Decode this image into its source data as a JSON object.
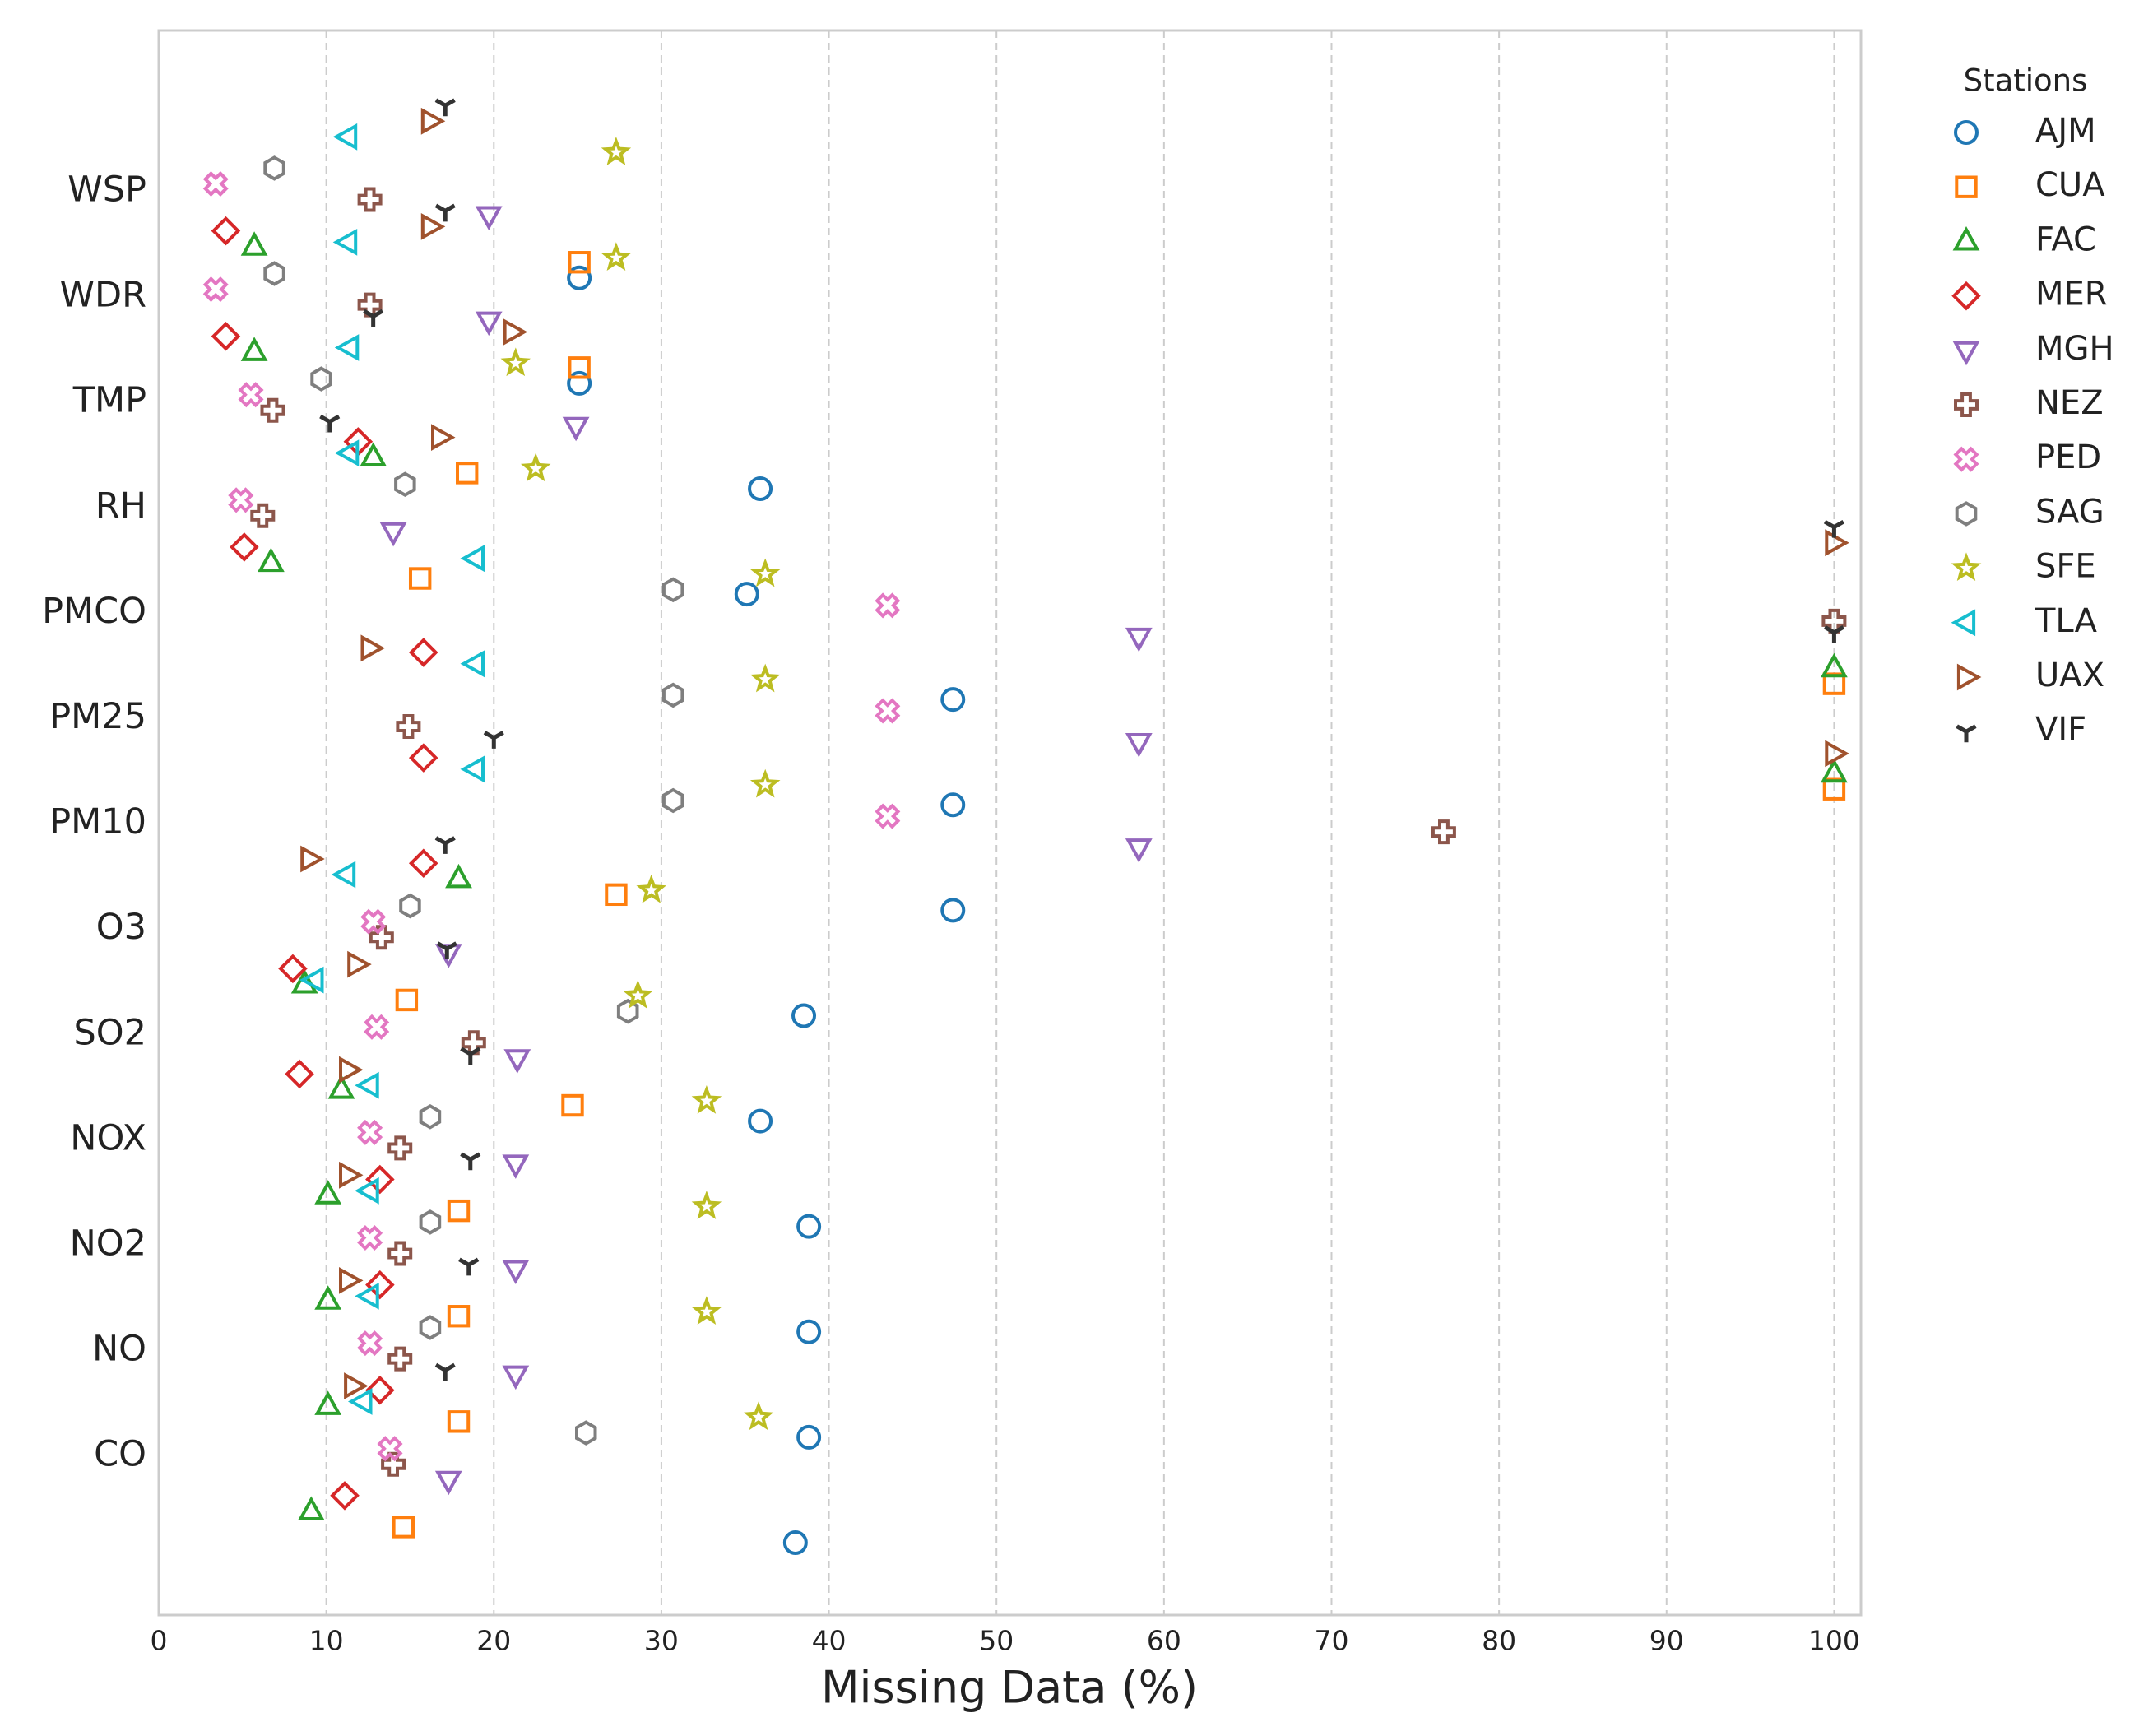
{
  "chart_data": {
    "type": "dot",
    "xlabel": "Missing Data (%)",
    "legend_title": "Stations",
    "legend": "right",
    "grid": true,
    "xlim": [
      0,
      101.6
    ],
    "xticks": [
      0,
      10,
      20,
      30,
      40,
      50,
      60,
      70,
      80,
      90,
      100
    ],
    "categories": [
      "WSP",
      "WDR",
      "TMP",
      "RH",
      "PMCO",
      "PM25",
      "PM10",
      "O3",
      "SO2",
      "NOX",
      "NO2",
      "NO",
      "CO"
    ],
    "series": [
      {
        "name": "AJM",
        "color": "#1f77b4",
        "marker": "o",
        "values": [
          25.1,
          25.1,
          35.9,
          35.1,
          47.4,
          47.4,
          47.4,
          38.5,
          35.9,
          38.8,
          38.8,
          38.8,
          38.0
        ]
      },
      {
        "name": "CUA",
        "color": "#ff7f0e",
        "marker": "s",
        "values": [
          25.1,
          25.1,
          18.4,
          15.6,
          100,
          100,
          27.3,
          14.8,
          24.7,
          17.9,
          17.9,
          17.9,
          14.6
        ]
      },
      {
        "name": "FAC",
        "color": "#2ca02c",
        "marker": "^",
        "values": [
          5.7,
          5.7,
          12.8,
          6.7,
          100,
          100,
          17.9,
          8.7,
          10.9,
          10.1,
          10.1,
          10.1,
          9.1
        ]
      },
      {
        "name": "MER",
        "color": "#d62728",
        "marker": "D",
        "values": [
          4.0,
          4.0,
          11.9,
          5.1,
          15.8,
          15.8,
          15.8,
          8.0,
          8.4,
          13.2,
          13.2,
          13.2,
          11.1
        ]
      },
      {
        "name": "MGH",
        "color": "#9467bd",
        "marker": "v",
        "values": [
          19.7,
          19.7,
          24.9,
          14.0,
          58.5,
          58.5,
          58.5,
          17.3,
          21.4,
          21.3,
          21.3,
          21.3,
          17.3
        ]
      },
      {
        "name": "NEZ",
        "color": "#8c564b",
        "marker": "P",
        "values": [
          12.6,
          12.6,
          6.8,
          6.2,
          100,
          14.9,
          76.7,
          13.3,
          18.8,
          14.4,
          14.4,
          14.4,
          14.0
        ]
      },
      {
        "name": "PED",
        "color": "#e377c2",
        "marker": "X",
        "values": [
          3.4,
          3.4,
          5.5,
          4.9,
          43.5,
          43.5,
          43.5,
          12.8,
          13.0,
          12.6,
          12.6,
          12.6,
          13.8
        ]
      },
      {
        "name": "SAG",
        "color": "#7f7f7f",
        "marker": "h",
        "values": [
          6.9,
          6.9,
          9.7,
          14.7,
          30.7,
          30.7,
          30.7,
          15.0,
          28.0,
          16.2,
          16.2,
          16.2,
          25.5
        ]
      },
      {
        "name": "SFE",
        "color": "#bcbd22",
        "marker": "*",
        "values": [
          27.3,
          27.3,
          21.3,
          22.5,
          36.2,
          36.2,
          36.2,
          29.4,
          28.6,
          32.7,
          32.7,
          32.7,
          35.8
        ]
      },
      {
        "name": "TLA",
        "color": "#17becf",
        "marker": "<",
        "values": [
          11.3,
          11.3,
          11.4,
          11.4,
          18.9,
          18.9,
          18.9,
          11.2,
          9.3,
          12.6,
          12.6,
          12.6,
          12.2
        ]
      },
      {
        "name": "UAX",
        "color": "#a0522d",
        "marker": ">",
        "values": [
          16.2,
          16.2,
          21.1,
          16.8,
          100,
          12.6,
          100,
          9.0,
          11.8,
          11.3,
          11.3,
          11.3,
          11.6
        ]
      },
      {
        "name": "VIF",
        "color": "#333333",
        "marker": "1",
        "values": [
          17.1,
          17.1,
          12.8,
          10.2,
          100,
          100,
          20.0,
          17.1,
          17.2,
          18.6,
          18.6,
          18.5,
          17.1
        ]
      }
    ]
  }
}
